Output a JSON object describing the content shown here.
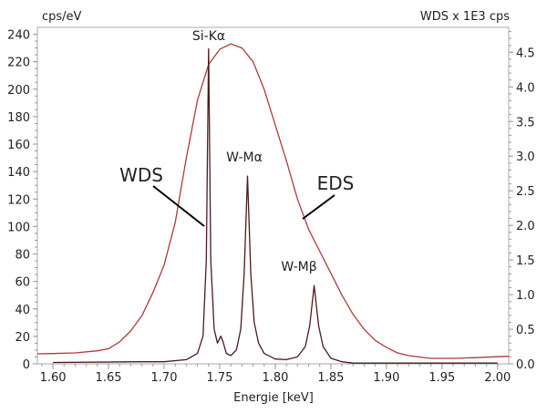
{
  "chart_data": {
    "type": "line",
    "xlabel": "Energie [keV]",
    "ylabel_left": "cps/eV",
    "ylabel_right": "WDS x 1E3 cps",
    "xlim": [
      1.586,
      2.01
    ],
    "ylim_left": [
      0,
      245
    ],
    "ylim_right": [
      0,
      4.86
    ],
    "x_ticks": [
      "1.60",
      "1.65",
      "1.70",
      "1.75",
      "1.80",
      "1.85",
      "1.90",
      "1.95",
      "2.00"
    ],
    "y_left_ticks": [
      "0",
      "20",
      "40",
      "60",
      "80",
      "100",
      "120",
      "140",
      "160",
      "180",
      "200",
      "220",
      "240"
    ],
    "y_right_ticks": [
      "0.0",
      "0.5",
      "1.0",
      "1.5",
      "2.0",
      "2.5",
      "3.0",
      "3.5",
      "4.0",
      "4.5"
    ],
    "grid": false,
    "colors": {
      "eds": "#b03a3a",
      "wds": "#4a1c1c",
      "frame": "#aaaaaa"
    },
    "series": [
      {
        "name": "EDS",
        "axis": "left",
        "x": [
          1.586,
          1.6,
          1.62,
          1.64,
          1.65,
          1.66,
          1.67,
          1.68,
          1.69,
          1.7,
          1.71,
          1.72,
          1.73,
          1.74,
          1.75,
          1.76,
          1.77,
          1.78,
          1.79,
          1.8,
          1.81,
          1.82,
          1.83,
          1.84,
          1.85,
          1.86,
          1.87,
          1.88,
          1.89,
          1.9,
          1.91,
          1.92,
          1.94,
          1.96,
          1.98,
          2.01
        ],
        "y": [
          7.3,
          7.5,
          8,
          9.5,
          11,
          16,
          24,
          35,
          52,
          72,
          103,
          150,
          192,
          218,
          229,
          233,
          230,
          220,
          200,
          174,
          148,
          120,
          98,
          82,
          66,
          50,
          36,
          25,
          17,
          12,
          8,
          6,
          4,
          4,
          4.5,
          5.5
        ]
      },
      {
        "name": "WDS",
        "axis": "right",
        "x": [
          1.6,
          1.68,
          1.7,
          1.72,
          1.73,
          1.735,
          1.738,
          1.74,
          1.742,
          1.745,
          1.748,
          1.751,
          1.753,
          1.756,
          1.76,
          1.765,
          1.769,
          1.772,
          1.775,
          1.778,
          1.781,
          1.785,
          1.79,
          1.8,
          1.81,
          1.82,
          1.827,
          1.831,
          1.835,
          1.839,
          1.843,
          1.85,
          1.86,
          1.87,
          1.9,
          2.0
        ],
        "y": [
          0.02,
          0.03,
          0.03,
          0.06,
          0.15,
          0.4,
          1.5,
          4.55,
          1.5,
          0.5,
          0.3,
          0.4,
          0.32,
          0.15,
          0.12,
          0.2,
          0.5,
          1.3,
          2.71,
          1.3,
          0.6,
          0.3,
          0.15,
          0.07,
          0.06,
          0.1,
          0.25,
          0.55,
          1.13,
          0.55,
          0.25,
          0.08,
          0.03,
          0.01,
          0.01,
          0.01
        ]
      }
    ],
    "annotations": {
      "si_ka": "Si-Kα",
      "w_ma": "W-Mα",
      "w_mb": "W-Mβ",
      "wds": "WDS",
      "eds": "EDS"
    }
  }
}
